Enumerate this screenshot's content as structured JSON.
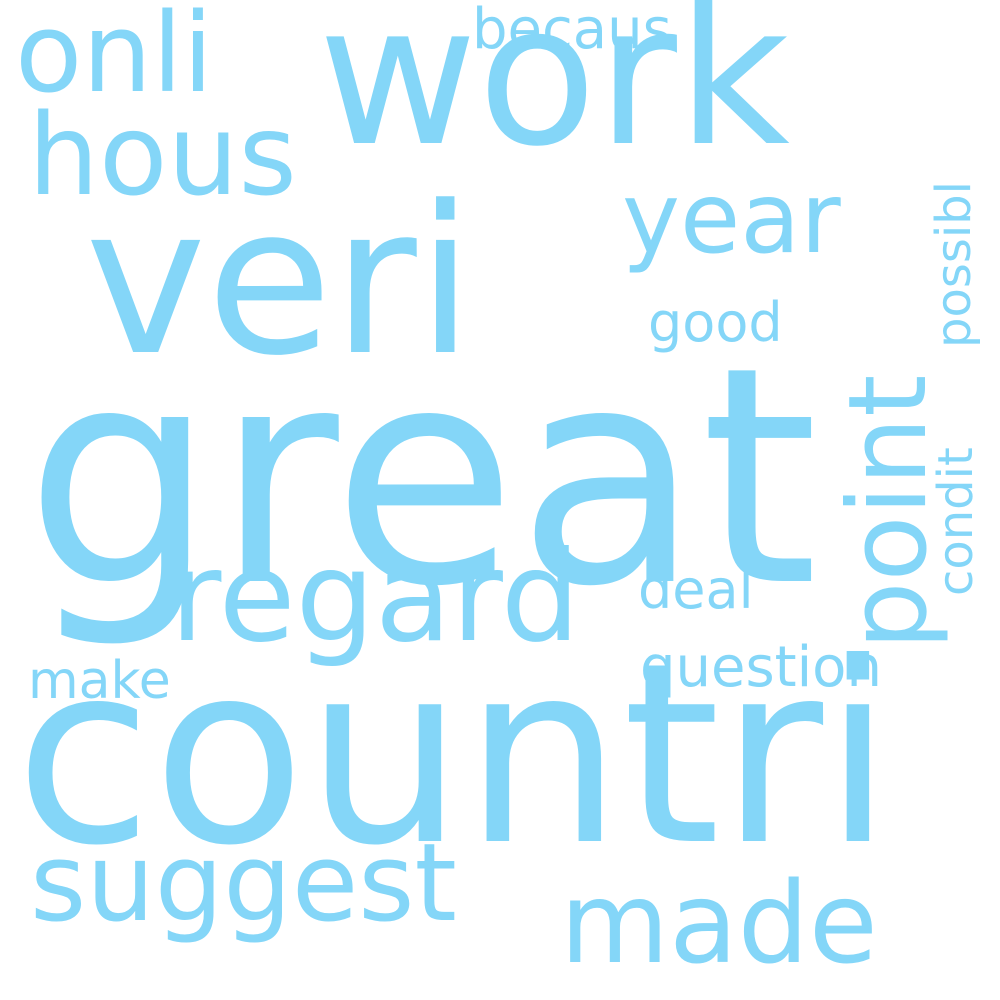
{
  "cloud": {
    "color": "#84d6f8",
    "background": "#ffffff",
    "words": {
      "great": "great",
      "countri": "countri",
      "veri": "veri",
      "work": "work",
      "regard": "regard",
      "suggest": "suggest",
      "made": "made",
      "hous": "hous",
      "onli": "onli",
      "year": "year",
      "point": "point",
      "possibl": "possibl",
      "condit": "condit",
      "question": "question",
      "becaus": "becaus",
      "good": "good",
      "deal": "deal",
      "make": "make"
    }
  }
}
